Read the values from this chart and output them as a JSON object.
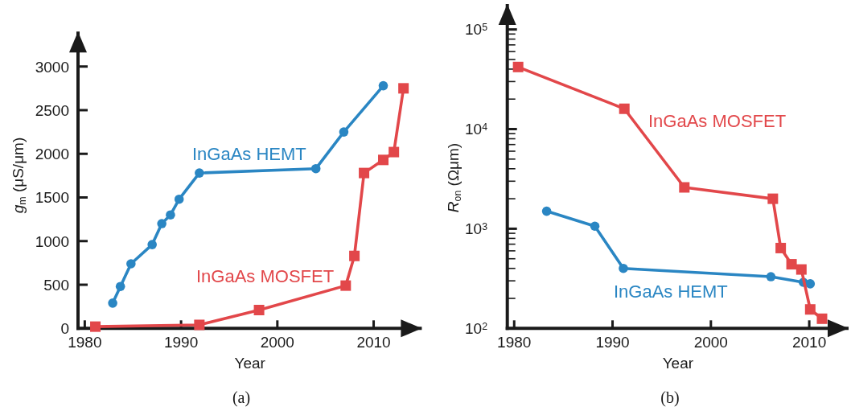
{
  "chart_data": [
    {
      "type": "line",
      "title": "(a)",
      "xlabel": "Year",
      "ylabel": "g$_{m}$ (μS/μm)",
      "xlim": [
        1979.3,
        2015
      ],
      "ylim": [
        0,
        3400
      ],
      "xticks": [
        1980,
        1990,
        2000,
        2010
      ],
      "yticks": [
        0,
        500,
        1000,
        1500,
        2000,
        2500,
        3000
      ],
      "series": [
        {
          "name": "InGaAs HEMT",
          "color": "#2a86c3",
          "marker": "circle",
          "x": [
            1982.9,
            1983.7,
            1984.8,
            1987.0,
            1988.0,
            1988.9,
            1989.8,
            1991.9,
            2004.0,
            2006.9,
            2011.0
          ],
          "values": [
            290,
            480,
            740,
            960,
            1200,
            1300,
            1480,
            1780,
            1830,
            2250,
            2780
          ]
        },
        {
          "name": "InGaAs MOSFET",
          "color": "#e2474a",
          "marker": "square",
          "x": [
            1981.1,
            1991.9,
            1998.1,
            2007.1,
            2008.0,
            2009.0,
            2011.0,
            2012.1,
            2013.1
          ],
          "values": [
            20,
            40,
            210,
            490,
            830,
            1780,
            1930,
            2020,
            2750
          ]
        }
      ]
    },
    {
      "type": "line",
      "title": "(b)",
      "xlabel": "Year",
      "ylabel": "R$_{on}$ (Ωμm)",
      "log": "y",
      "xlim": [
        1979.3,
        2014
      ],
      "ylim": [
        100,
        180000
      ],
      "xticks": [
        1980,
        1990,
        2000,
        2010
      ],
      "yticks": [
        {
          "value": 100,
          "label": "10$^{2}$"
        },
        {
          "value": 200,
          "label": null
        },
        {
          "value": 300,
          "label": null
        },
        {
          "value": 400,
          "label": null
        },
        {
          "value": 500,
          "label": null
        },
        {
          "value": 600,
          "label": null
        },
        {
          "value": 700,
          "label": null
        },
        {
          "value": 800,
          "label": null
        },
        {
          "value": 900,
          "label": null
        },
        {
          "value": 1000,
          "label": "10$^{3}$"
        },
        {
          "value": 2000,
          "label": null
        },
        {
          "value": 3000,
          "label": null
        },
        {
          "value": 4000,
          "label": null
        },
        {
          "value": 5000,
          "label": null
        },
        {
          "value": 6000,
          "label": null
        },
        {
          "value": 7000,
          "label": null
        },
        {
          "value": 8000,
          "label": null
        },
        {
          "value": 9000,
          "label": null
        },
        {
          "value": 10000,
          "label": "10$^{4}$"
        },
        {
          "value": 20000,
          "label": null
        },
        {
          "value": 30000,
          "label": null
        },
        {
          "value": 40000,
          "label": null
        },
        {
          "value": 50000,
          "label": null
        },
        {
          "value": 60000,
          "label": null
        },
        {
          "value": 70000,
          "label": null
        },
        {
          "value": 80000,
          "label": null
        },
        {
          "value": 90000,
          "label": null
        },
        {
          "value": 100000,
          "label": "10$^{5}$"
        }
      ],
      "series": [
        {
          "name": "InGaAs HEMT",
          "color": "#2a86c3",
          "marker": "circle",
          "x": [
            1983.3,
            1988.2,
            1991.1,
            2006.1,
            2009.4,
            2010.1
          ],
          "values": [
            1500,
            1060,
            400,
            330,
            290,
            280
          ]
        },
        {
          "name": "InGaAs MOSFET",
          "color": "#e2474a",
          "marker": "square",
          "x": [
            1980.4,
            1991.2,
            1997.3,
            2006.3,
            2007.1,
            2008.2,
            2009.2,
            2010.1,
            2011.3
          ],
          "values": [
            42000,
            16000,
            2600,
            2000,
            640,
            440,
            390,
            155,
            125
          ]
        }
      ]
    }
  ]
}
